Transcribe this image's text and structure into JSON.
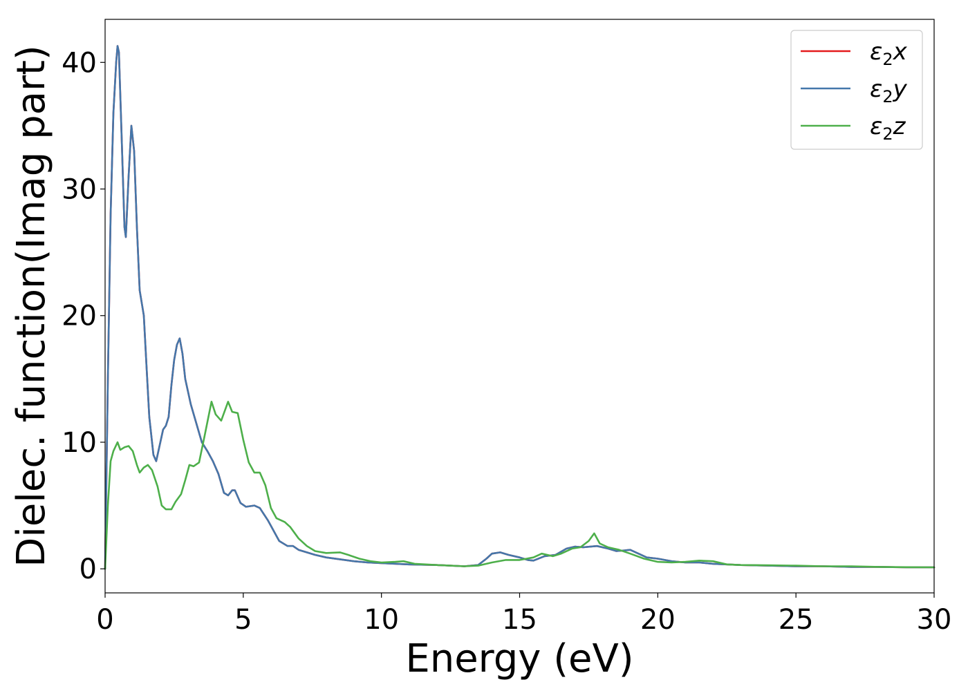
{
  "chart_data": {
    "type": "line",
    "xlabel": "Energy (eV)",
    "ylabel": "Dielec. function(Imag part)",
    "xlim": [
      0,
      30
    ],
    "ylim": [
      -1.9,
      43.4
    ],
    "xticks": [
      0,
      5,
      10,
      15,
      20,
      25,
      30
    ],
    "yticks": [
      0,
      10,
      20,
      30,
      40
    ],
    "grid": false,
    "legend_position": "top-right",
    "series": [
      {
        "name": "ε₂x",
        "legend_base": "ε",
        "legend_sub": "2",
        "legend_axis": "x",
        "color": "#e41a1c",
        "points": [
          [
            0,
            0
          ],
          [
            0.1,
            15
          ],
          [
            0.2,
            28
          ],
          [
            0.3,
            36
          ],
          [
            0.4,
            40
          ],
          [
            0.45,
            41.3
          ],
          [
            0.5,
            40.8
          ],
          [
            0.6,
            34
          ],
          [
            0.7,
            27
          ],
          [
            0.75,
            26.2
          ],
          [
            0.85,
            31
          ],
          [
            0.95,
            35
          ],
          [
            1.05,
            33
          ],
          [
            1.15,
            27
          ],
          [
            1.25,
            22
          ],
          [
            1.4,
            20
          ],
          [
            1.5,
            16
          ],
          [
            1.6,
            12
          ],
          [
            1.75,
            9
          ],
          [
            1.85,
            8.5
          ],
          [
            2.0,
            10
          ],
          [
            2.1,
            11
          ],
          [
            2.2,
            11.3
          ],
          [
            2.3,
            12
          ],
          [
            2.4,
            14.5
          ],
          [
            2.5,
            16.5
          ],
          [
            2.6,
            17.7
          ],
          [
            2.7,
            18.2
          ],
          [
            2.8,
            17
          ],
          [
            2.9,
            15
          ],
          [
            3.1,
            13
          ],
          [
            3.3,
            11.5
          ],
          [
            3.5,
            10
          ],
          [
            3.7,
            9.3
          ],
          [
            3.9,
            8.5
          ],
          [
            4.1,
            7.5
          ],
          [
            4.3,
            6
          ],
          [
            4.45,
            5.8
          ],
          [
            4.6,
            6.2
          ],
          [
            4.7,
            6.2
          ],
          [
            4.9,
            5.2
          ],
          [
            5.1,
            4.9
          ],
          [
            5.4,
            5
          ],
          [
            5.6,
            4.8
          ],
          [
            5.9,
            3.8
          ],
          [
            6.1,
            3.0
          ],
          [
            6.3,
            2.2
          ],
          [
            6.6,
            1.8
          ],
          [
            6.8,
            1.8
          ],
          [
            7.0,
            1.5
          ],
          [
            7.3,
            1.3
          ],
          [
            7.6,
            1.1
          ],
          [
            8.0,
            0.9
          ],
          [
            8.5,
            0.75
          ],
          [
            9.0,
            0.6
          ],
          [
            9.5,
            0.5
          ],
          [
            10,
            0.45
          ],
          [
            11,
            0.35
          ],
          [
            12,
            0.3
          ],
          [
            13,
            0.2
          ],
          [
            13.5,
            0.3
          ],
          [
            13.8,
            0.8
          ],
          [
            14.0,
            1.2
          ],
          [
            14.3,
            1.3
          ],
          [
            14.6,
            1.1
          ],
          [
            15.0,
            0.9
          ],
          [
            15.3,
            0.7
          ],
          [
            15.5,
            0.65
          ],
          [
            15.9,
            1.0
          ],
          [
            16.3,
            1.1
          ],
          [
            16.7,
            1.6
          ],
          [
            17.0,
            1.75
          ],
          [
            17.3,
            1.7
          ],
          [
            17.8,
            1.8
          ],
          [
            18.2,
            1.6
          ],
          [
            18.5,
            1.4
          ],
          [
            18.8,
            1.45
          ],
          [
            19.0,
            1.5
          ],
          [
            19.3,
            1.2
          ],
          [
            19.6,
            0.9
          ],
          [
            20.0,
            0.8
          ],
          [
            20.5,
            0.6
          ],
          [
            21,
            0.5
          ],
          [
            21.5,
            0.5
          ],
          [
            22,
            0.4
          ],
          [
            23,
            0.3
          ],
          [
            24,
            0.25
          ],
          [
            25,
            0.2
          ],
          [
            26,
            0.2
          ],
          [
            27,
            0.15
          ],
          [
            28,
            0.15
          ],
          [
            29,
            0.12
          ],
          [
            30,
            0.12
          ]
        ]
      },
      {
        "name": "ε₂y",
        "legend_base": "ε",
        "legend_sub": "2",
        "legend_axis": "y",
        "color": "#4477aa",
        "points": [
          [
            0,
            0
          ],
          [
            0.1,
            15
          ],
          [
            0.2,
            28
          ],
          [
            0.3,
            36
          ],
          [
            0.4,
            40
          ],
          [
            0.45,
            41.3
          ],
          [
            0.5,
            40.8
          ],
          [
            0.6,
            34
          ],
          [
            0.7,
            27
          ],
          [
            0.75,
            26.2
          ],
          [
            0.85,
            31
          ],
          [
            0.95,
            35
          ],
          [
            1.05,
            33
          ],
          [
            1.15,
            27
          ],
          [
            1.25,
            22
          ],
          [
            1.4,
            20
          ],
          [
            1.5,
            16
          ],
          [
            1.6,
            12
          ],
          [
            1.75,
            9
          ],
          [
            1.85,
            8.5
          ],
          [
            2.0,
            10
          ],
          [
            2.1,
            11
          ],
          [
            2.2,
            11.3
          ],
          [
            2.3,
            12
          ],
          [
            2.4,
            14.5
          ],
          [
            2.5,
            16.5
          ],
          [
            2.6,
            17.7
          ],
          [
            2.7,
            18.2
          ],
          [
            2.8,
            17
          ],
          [
            2.9,
            15
          ],
          [
            3.1,
            13
          ],
          [
            3.3,
            11.5
          ],
          [
            3.5,
            10
          ],
          [
            3.7,
            9.3
          ],
          [
            3.9,
            8.5
          ],
          [
            4.1,
            7.5
          ],
          [
            4.3,
            6
          ],
          [
            4.45,
            5.8
          ],
          [
            4.6,
            6.2
          ],
          [
            4.7,
            6.2
          ],
          [
            4.9,
            5.2
          ],
          [
            5.1,
            4.9
          ],
          [
            5.4,
            5
          ],
          [
            5.6,
            4.8
          ],
          [
            5.9,
            3.8
          ],
          [
            6.1,
            3.0
          ],
          [
            6.3,
            2.2
          ],
          [
            6.6,
            1.8
          ],
          [
            6.8,
            1.8
          ],
          [
            7.0,
            1.5
          ],
          [
            7.3,
            1.3
          ],
          [
            7.6,
            1.1
          ],
          [
            8.0,
            0.9
          ],
          [
            8.5,
            0.75
          ],
          [
            9.0,
            0.6
          ],
          [
            9.5,
            0.5
          ],
          [
            10,
            0.45
          ],
          [
            11,
            0.35
          ],
          [
            12,
            0.3
          ],
          [
            13,
            0.2
          ],
          [
            13.5,
            0.3
          ],
          [
            13.8,
            0.8
          ],
          [
            14.0,
            1.2
          ],
          [
            14.3,
            1.3
          ],
          [
            14.6,
            1.1
          ],
          [
            15.0,
            0.9
          ],
          [
            15.3,
            0.7
          ],
          [
            15.5,
            0.65
          ],
          [
            15.9,
            1.0
          ],
          [
            16.3,
            1.1
          ],
          [
            16.7,
            1.6
          ],
          [
            17.0,
            1.75
          ],
          [
            17.3,
            1.7
          ],
          [
            17.8,
            1.8
          ],
          [
            18.2,
            1.6
          ],
          [
            18.5,
            1.4
          ],
          [
            18.8,
            1.45
          ],
          [
            19.0,
            1.5
          ],
          [
            19.3,
            1.2
          ],
          [
            19.6,
            0.9
          ],
          [
            20.0,
            0.8
          ],
          [
            20.5,
            0.6
          ],
          [
            21,
            0.5
          ],
          [
            21.5,
            0.5
          ],
          [
            22,
            0.4
          ],
          [
            23,
            0.3
          ],
          [
            24,
            0.25
          ],
          [
            25,
            0.2
          ],
          [
            26,
            0.2
          ],
          [
            27,
            0.15
          ],
          [
            28,
            0.15
          ],
          [
            29,
            0.12
          ],
          [
            30,
            0.12
          ]
        ]
      },
      {
        "name": "ε₂z",
        "legend_base": "ε",
        "legend_sub": "2",
        "legend_axis": "z",
        "color": "#4daf4a",
        "points": [
          [
            0,
            0
          ],
          [
            0.1,
            5
          ],
          [
            0.2,
            8.5
          ],
          [
            0.3,
            9.3
          ],
          [
            0.45,
            10
          ],
          [
            0.55,
            9.4
          ],
          [
            0.7,
            9.6
          ],
          [
            0.85,
            9.7
          ],
          [
            1.0,
            9.3
          ],
          [
            1.15,
            8.2
          ],
          [
            1.25,
            7.6
          ],
          [
            1.4,
            8.0
          ],
          [
            1.55,
            8.2
          ],
          [
            1.7,
            7.8
          ],
          [
            1.9,
            6.5
          ],
          [
            2.05,
            5.0
          ],
          [
            2.2,
            4.7
          ],
          [
            2.4,
            4.7
          ],
          [
            2.55,
            5.3
          ],
          [
            2.75,
            5.9
          ],
          [
            2.9,
            7.0
          ],
          [
            3.05,
            8.2
          ],
          [
            3.2,
            8.1
          ],
          [
            3.4,
            8.4
          ],
          [
            3.6,
            10.5
          ],
          [
            3.85,
            13.2
          ],
          [
            4.0,
            12.2
          ],
          [
            4.2,
            11.7
          ],
          [
            4.45,
            13.2
          ],
          [
            4.6,
            12.4
          ],
          [
            4.8,
            12.3
          ],
          [
            5.0,
            10.2
          ],
          [
            5.2,
            8.4
          ],
          [
            5.4,
            7.6
          ],
          [
            5.6,
            7.6
          ],
          [
            5.8,
            6.6
          ],
          [
            6.0,
            4.8
          ],
          [
            6.2,
            4.0
          ],
          [
            6.5,
            3.7
          ],
          [
            6.7,
            3.3
          ],
          [
            7.0,
            2.4
          ],
          [
            7.3,
            1.8
          ],
          [
            7.6,
            1.4
          ],
          [
            8.0,
            1.25
          ],
          [
            8.5,
            1.3
          ],
          [
            8.8,
            1.1
          ],
          [
            9.2,
            0.8
          ],
          [
            9.6,
            0.6
          ],
          [
            10,
            0.5
          ],
          [
            10.5,
            0.55
          ],
          [
            10.8,
            0.6
          ],
          [
            11.2,
            0.4
          ],
          [
            12,
            0.3
          ],
          [
            13,
            0.2
          ],
          [
            13.5,
            0.25
          ],
          [
            14,
            0.5
          ],
          [
            14.5,
            0.7
          ],
          [
            15.0,
            0.7
          ],
          [
            15.5,
            0.9
          ],
          [
            15.8,
            1.2
          ],
          [
            16.2,
            1.0
          ],
          [
            16.5,
            1.2
          ],
          [
            16.9,
            1.6
          ],
          [
            17.2,
            1.7
          ],
          [
            17.5,
            2.2
          ],
          [
            17.7,
            2.8
          ],
          [
            17.9,
            2.0
          ],
          [
            18.2,
            1.7
          ],
          [
            18.6,
            1.5
          ],
          [
            19.0,
            1.2
          ],
          [
            19.5,
            0.8
          ],
          [
            20,
            0.55
          ],
          [
            20.5,
            0.5
          ],
          [
            21,
            0.55
          ],
          [
            21.5,
            0.65
          ],
          [
            22,
            0.6
          ],
          [
            22.5,
            0.35
          ],
          [
            23,
            0.3
          ],
          [
            24,
            0.28
          ],
          [
            25,
            0.25
          ],
          [
            26,
            0.2
          ],
          [
            27,
            0.2
          ],
          [
            28,
            0.15
          ],
          [
            29,
            0.13
          ],
          [
            30,
            0.12
          ]
        ]
      }
    ]
  }
}
